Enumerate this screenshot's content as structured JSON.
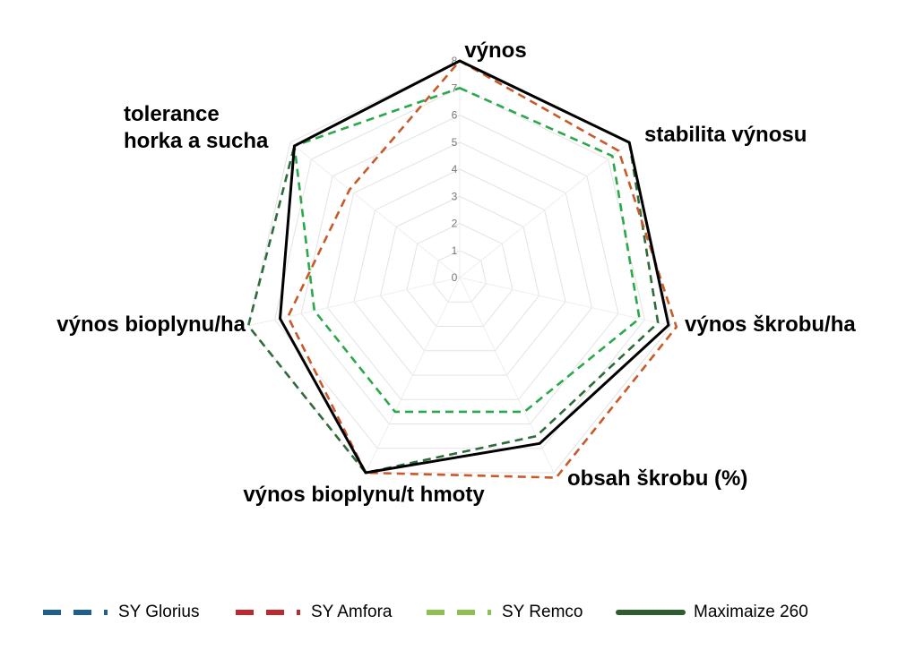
{
  "chart_data": {
    "type": "radar",
    "categories": [
      [
        "výnos"
      ],
      [
        "stabilita výnosu"
      ],
      [
        "výnos škrobu/ha"
      ],
      [
        "obsah škrobu (%)"
      ],
      [
        "výnos bioplynu/t hmoty"
      ],
      [
        "výnos bioplynu/ha"
      ],
      [
        "tolerance",
        "horka a sucha"
      ]
    ],
    "rlim": [
      0,
      8
    ],
    "ticks": [
      "0",
      "1",
      "2",
      "3",
      "4",
      "5",
      "6",
      "7",
      "8"
    ],
    "grid": true,
    "legend": "bottom",
    "series": [
      {
        "name": "SY Glorius",
        "color": "#1f5f8b",
        "plot_color": "#2e6b3a",
        "dashed": true,
        "values": [
          8,
          8,
          7.5,
          6.5,
          8,
          8,
          7.8
        ]
      },
      {
        "name": "SY Amfora",
        "color": "#c0282d",
        "plot_color": "#c85a2a",
        "dashed": true,
        "values": [
          8,
          7.5,
          8.2,
          8.2,
          8,
          6.5,
          5.2
        ]
      },
      {
        "name": "SY Remco",
        "color": "#8cc152",
        "plot_color": "#2aa84a",
        "dashed": true,
        "values": [
          7,
          7.2,
          6.8,
          5.5,
          5.5,
          5.5,
          7.8
        ]
      },
      {
        "name": "Maximaize 260",
        "color": "#2e5e30",
        "plot_color": "#000000",
        "dashed": false,
        "values": [
          8,
          8,
          7.9,
          6.8,
          8,
          6.8,
          7.8
        ]
      }
    ]
  }
}
